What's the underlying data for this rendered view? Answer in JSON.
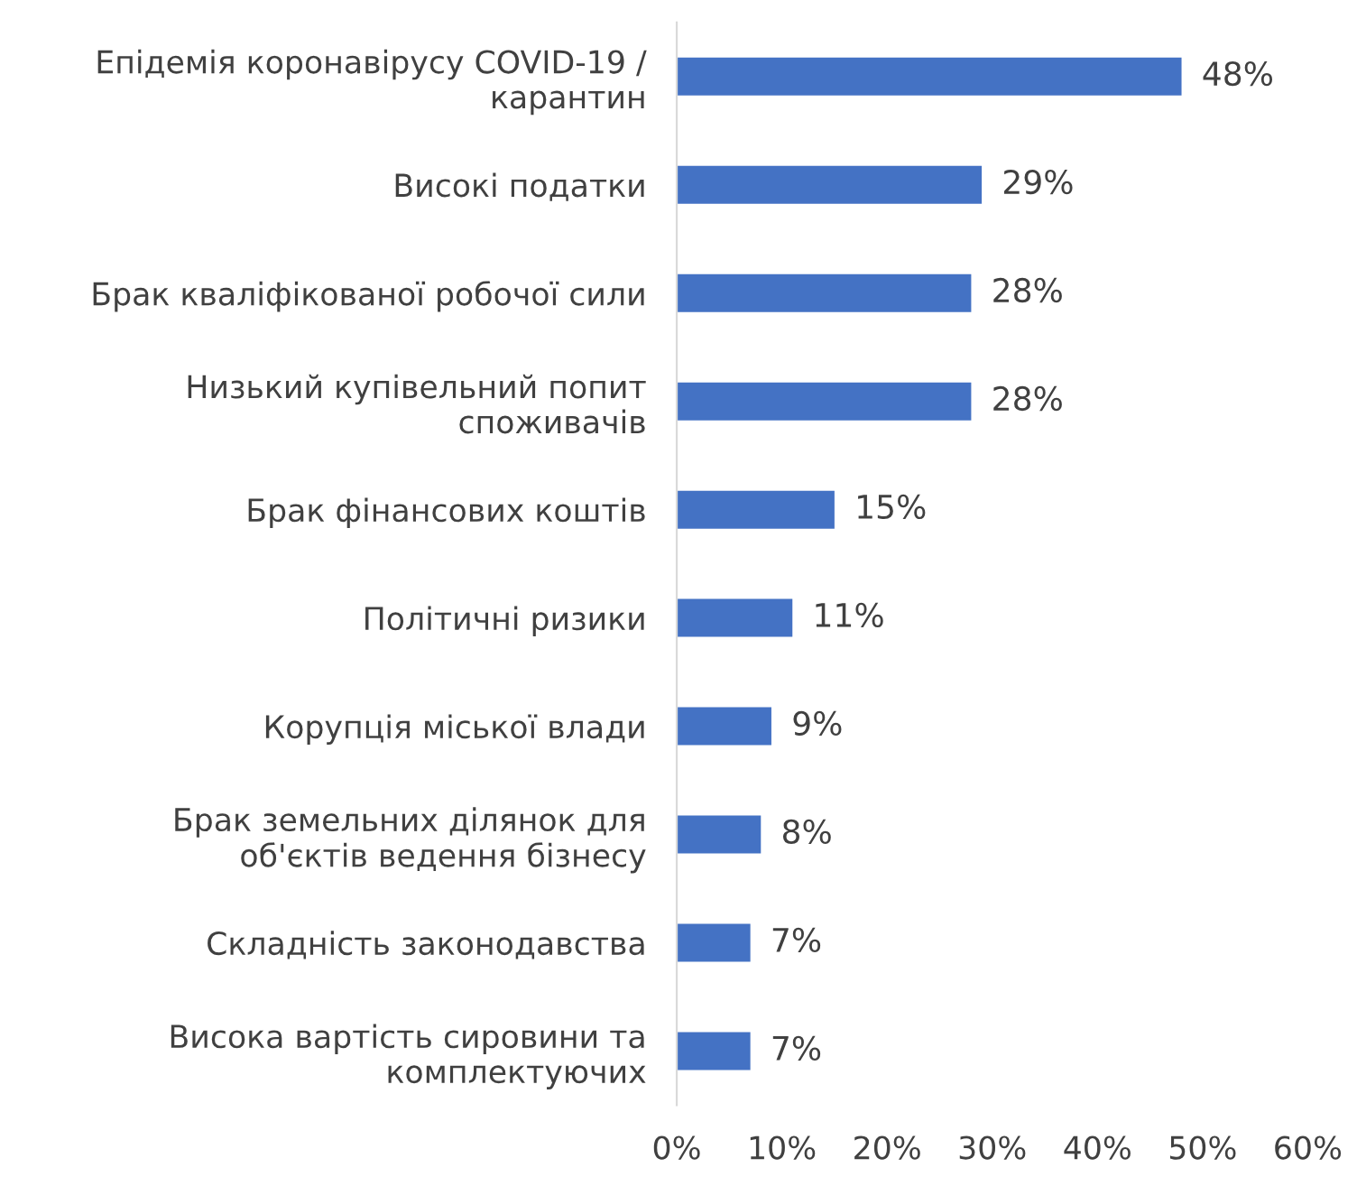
{
  "chart_data": {
    "type": "bar",
    "orientation": "horizontal",
    "categories": [
      "Епідемія коронавірусу COVID-19 /\nкарантин",
      "Високі податки",
      "Брак кваліфікованої робочої сили",
      "Низький купівельний попит\nспоживачів",
      "Брак фінансових коштів",
      "Політичні ризики",
      "Корупція міської влади",
      "Брак земельних ділянок для\nоб'єктів ведення бізнесу",
      "Складність законодавства",
      "Висока вартість сировини та\nкомплектуючих"
    ],
    "values": [
      48,
      29,
      28,
      28,
      15,
      11,
      9,
      8,
      7,
      7
    ],
    "value_labels": [
      "48%",
      "29%",
      "28%",
      "28%",
      "15%",
      "11%",
      "9%",
      "8%",
      "7%",
      "7%"
    ],
    "color": "#4472c4",
    "xlim": [
      0,
      60
    ],
    "xticks": [
      {
        "value": 0,
        "label": "0%"
      },
      {
        "value": 10,
        "label": "10%"
      },
      {
        "value": 20,
        "label": "20%"
      },
      {
        "value": 30,
        "label": "30%"
      },
      {
        "value": 40,
        "label": "40%"
      },
      {
        "value": 50,
        "label": "50%"
      },
      {
        "value": 60,
        "label": "60%"
      }
    ],
    "grid": false,
    "legend": false
  }
}
